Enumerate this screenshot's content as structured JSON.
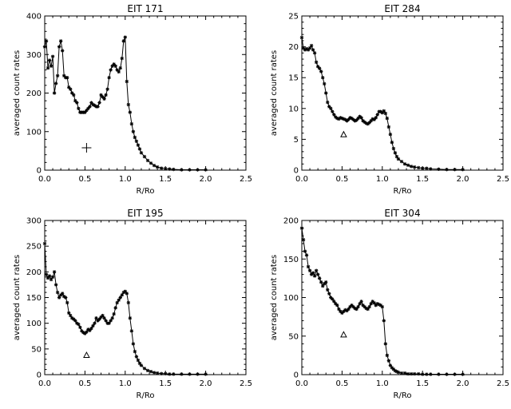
{
  "chart_data": [
    {
      "type": "line",
      "title": "EIT 171",
      "xlabel": "R/Ro",
      "ylabel": "averaged count rates",
      "xlim": [
        0,
        2.5
      ],
      "ylim": [
        0,
        400
      ],
      "xticks": [
        "0.0",
        "0.5",
        "1.0",
        "1.5",
        "2.0",
        "2.5"
      ],
      "yticks": [
        "0",
        "100",
        "200",
        "300",
        "400"
      ],
      "grid": false,
      "marker": "asterisk",
      "annotation": {
        "symbol": "plus",
        "x": 0.52,
        "y": 58
      },
      "series": [
        {
          "x": [
            0.0,
            0.02,
            0.04,
            0.06,
            0.08,
            0.1,
            0.12,
            0.14,
            0.16,
            0.18,
            0.2,
            0.22,
            0.24,
            0.26,
            0.28,
            0.3,
            0.32,
            0.34,
            0.36,
            0.38,
            0.4,
            0.42,
            0.44,
            0.46,
            0.48,
            0.5,
            0.52,
            0.54,
            0.56,
            0.58,
            0.6,
            0.62,
            0.64,
            0.66,
            0.68,
            0.7,
            0.72,
            0.74,
            0.76,
            0.78,
            0.8,
            0.82,
            0.84,
            0.86,
            0.88,
            0.9,
            0.92,
            0.94,
            0.96,
            0.98,
            1.0,
            1.02,
            1.04,
            1.06,
            1.08,
            1.1,
            1.12,
            1.14,
            1.16,
            1.18,
            1.2,
            1.24,
            1.28,
            1.32,
            1.36,
            1.4,
            1.45,
            1.5,
            1.55,
            1.6,
            1.7,
            1.8,
            1.9,
            2.0
          ],
          "y": [
            320,
            335,
            265,
            285,
            270,
            295,
            200,
            225,
            245,
            320,
            335,
            310,
            245,
            240,
            240,
            215,
            210,
            200,
            195,
            180,
            175,
            160,
            150,
            150,
            150,
            150,
            155,
            160,
            165,
            175,
            170,
            168,
            165,
            165,
            175,
            195,
            190,
            185,
            195,
            210,
            240,
            260,
            270,
            275,
            270,
            260,
            255,
            265,
            290,
            335,
            345,
            230,
            170,
            150,
            120,
            100,
            85,
            75,
            65,
            55,
            45,
            35,
            25,
            18,
            12,
            8,
            5,
            4,
            3,
            2,
            1,
            1,
            1,
            1
          ]
        }
      ]
    },
    {
      "type": "line",
      "title": "EIT 284",
      "xlabel": "R/Ro",
      "ylabel": "averaged count rates",
      "xlim": [
        0,
        2.5
      ],
      "ylim": [
        0,
        25
      ],
      "xticks": [
        "0.0",
        "0.5",
        "1.0",
        "1.5",
        "2.0",
        "2.5"
      ],
      "yticks": [
        "0",
        "5",
        "10",
        "15",
        "20",
        "25"
      ],
      "grid": false,
      "marker": "asterisk",
      "annotation": {
        "symbol": "triangle",
        "x": 0.52,
        "y": 5.8
      },
      "series": [
        {
          "x": [
            0.0,
            0.02,
            0.04,
            0.06,
            0.08,
            0.1,
            0.12,
            0.14,
            0.16,
            0.18,
            0.2,
            0.22,
            0.24,
            0.26,
            0.28,
            0.3,
            0.32,
            0.34,
            0.36,
            0.38,
            0.4,
            0.42,
            0.44,
            0.46,
            0.48,
            0.5,
            0.52,
            0.54,
            0.56,
            0.58,
            0.6,
            0.62,
            0.64,
            0.66,
            0.68,
            0.7,
            0.72,
            0.74,
            0.76,
            0.78,
            0.8,
            0.82,
            0.84,
            0.86,
            0.88,
            0.9,
            0.92,
            0.94,
            0.96,
            0.98,
            1.0,
            1.02,
            1.04,
            1.06,
            1.08,
            1.1,
            1.12,
            1.14,
            1.16,
            1.18,
            1.2,
            1.24,
            1.28,
            1.32,
            1.36,
            1.4,
            1.45,
            1.5,
            1.55,
            1.6,
            1.7,
            1.8,
            1.9,
            2.0
          ],
          "y": [
            21.5,
            19.8,
            19.5,
            19.7,
            19.5,
            19.8,
            20.2,
            19.5,
            19.0,
            17.5,
            16.8,
            16.5,
            16.0,
            15.0,
            14.0,
            12.5,
            11.0,
            10.3,
            10.0,
            9.5,
            9.0,
            8.6,
            8.4,
            8.3,
            8.5,
            8.4,
            8.3,
            8.2,
            8.0,
            8.2,
            8.5,
            8.4,
            8.2,
            8.0,
            8.1,
            8.4,
            8.7,
            8.5,
            8.0,
            7.8,
            7.6,
            7.5,
            7.7,
            8.0,
            8.3,
            8.2,
            8.5,
            9.0,
            9.5,
            9.5,
            9.3,
            9.6,
            9.2,
            8.4,
            7.0,
            5.8,
            4.5,
            3.5,
            2.8,
            2.2,
            1.8,
            1.4,
            1.0,
            0.8,
            0.6,
            0.5,
            0.4,
            0.3,
            0.3,
            0.2,
            0.15,
            0.1,
            0.1,
            0.1
          ]
        }
      ]
    },
    {
      "type": "line",
      "title": "EIT 195",
      "xlabel": "R/Ro",
      "ylabel": "averaged count rates",
      "xlim": [
        0,
        2.5
      ],
      "ylim": [
        0,
        300
      ],
      "xticks": [
        "0.0",
        "0.5",
        "1.0",
        "1.5",
        "2.0",
        "2.5"
      ],
      "yticks": [
        "0",
        "50",
        "100",
        "150",
        "200",
        "250",
        "300"
      ],
      "grid": false,
      "marker": "asterisk",
      "annotation": {
        "symbol": "triangle",
        "x": 0.52,
        "y": 38
      },
      "series": [
        {
          "x": [
            0.0,
            0.02,
            0.04,
            0.06,
            0.08,
            0.1,
            0.12,
            0.14,
            0.16,
            0.18,
            0.2,
            0.22,
            0.24,
            0.26,
            0.28,
            0.3,
            0.32,
            0.34,
            0.36,
            0.38,
            0.4,
            0.42,
            0.44,
            0.46,
            0.48,
            0.5,
            0.52,
            0.54,
            0.56,
            0.58,
            0.6,
            0.62,
            0.64,
            0.66,
            0.68,
            0.7,
            0.72,
            0.74,
            0.76,
            0.78,
            0.8,
            0.82,
            0.84,
            0.86,
            0.88,
            0.9,
            0.92,
            0.94,
            0.96,
            0.98,
            1.0,
            1.02,
            1.04,
            1.06,
            1.08,
            1.1,
            1.12,
            1.14,
            1.16,
            1.18,
            1.2,
            1.24,
            1.28,
            1.32,
            1.36,
            1.4,
            1.45,
            1.5,
            1.55,
            1.6,
            1.7,
            1.8,
            1.9,
            2.0
          ],
          "y": [
            255,
            195,
            188,
            192,
            185,
            190,
            200,
            175,
            160,
            150,
            155,
            158,
            152,
            150,
            140,
            120,
            115,
            110,
            108,
            105,
            100,
            98,
            92,
            85,
            82,
            80,
            83,
            88,
            86,
            90,
            95,
            100,
            110,
            105,
            108,
            112,
            115,
            110,
            105,
            100,
            100,
            105,
            110,
            118,
            130,
            140,
            145,
            150,
            155,
            160,
            162,
            158,
            140,
            110,
            85,
            60,
            45,
            35,
            28,
            22,
            18,
            12,
            8,
            6,
            4,
            3,
            2,
            2,
            1,
            1,
            1,
            1,
            1,
            1
          ]
        }
      ]
    },
    {
      "type": "line",
      "title": "EIT 304",
      "xlabel": "R/Ro",
      "ylabel": "averaged count rates",
      "xlim": [
        0,
        2.5
      ],
      "ylim": [
        0,
        200
      ],
      "xticks": [
        "0.0",
        "0.5",
        "1.0",
        "1.5",
        "2.0",
        "2.5"
      ],
      "yticks": [
        "0",
        "50",
        "100",
        "150",
        "200"
      ],
      "grid": false,
      "marker": "asterisk",
      "annotation": {
        "symbol": "triangle",
        "x": 0.52,
        "y": 52
      },
      "series": [
        {
          "x": [
            0.0,
            0.02,
            0.04,
            0.06,
            0.08,
            0.1,
            0.12,
            0.14,
            0.16,
            0.18,
            0.2,
            0.22,
            0.24,
            0.26,
            0.28,
            0.3,
            0.32,
            0.34,
            0.36,
            0.38,
            0.4,
            0.42,
            0.44,
            0.46,
            0.48,
            0.5,
            0.52,
            0.54,
            0.56,
            0.58,
            0.6,
            0.62,
            0.64,
            0.66,
            0.68,
            0.7,
            0.72,
            0.74,
            0.76,
            0.78,
            0.8,
            0.82,
            0.84,
            0.86,
            0.88,
            0.9,
            0.92,
            0.94,
            0.96,
            0.98,
            1.0,
            1.02,
            1.04,
            1.06,
            1.08,
            1.1,
            1.12,
            1.14,
            1.16,
            1.18,
            1.2,
            1.24,
            1.28,
            1.32,
            1.36,
            1.4,
            1.45,
            1.5,
            1.55,
            1.6,
            1.7,
            1.8,
            1.9,
            2.0
          ],
          "y": [
            190,
            175,
            160,
            155,
            140,
            135,
            130,
            132,
            128,
            135,
            130,
            125,
            120,
            115,
            118,
            120,
            110,
            105,
            100,
            98,
            95,
            92,
            90,
            85,
            82,
            80,
            82,
            84,
            83,
            85,
            88,
            90,
            88,
            86,
            85,
            88,
            92,
            95,
            90,
            88,
            86,
            85,
            88,
            92,
            95,
            93,
            90,
            92,
            91,
            90,
            88,
            70,
            40,
            25,
            18,
            12,
            9,
            7,
            5,
            4,
            3,
            2,
            2,
            1,
            1,
            1,
            1,
            0.5,
            0.5,
            0.5,
            0.5,
            0.5,
            0.5,
            0.5
          ]
        }
      ]
    }
  ]
}
